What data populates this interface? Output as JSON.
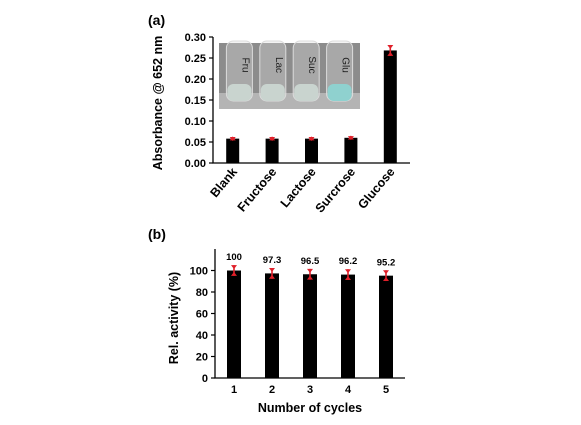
{
  "chart_data": [
    {
      "panel": "(a)",
      "type": "bar",
      "categories": [
        "Blank",
        "Fructose",
        "Lactose",
        "Surcrose",
        "Glucose"
      ],
      "values": [
        0.058,
        0.058,
        0.058,
        0.06,
        0.268
      ],
      "errors": [
        0.004,
        0.004,
        0.004,
        0.004,
        0.013
      ],
      "ylabel": "Absorbance @ 652 nm",
      "xlabel": "",
      "ylim": [
        0,
        0.3
      ],
      "yticks": [
        "0.00",
        "0.05",
        "0.10",
        "0.15",
        "0.20",
        "0.25",
        "0.30"
      ],
      "grid": false,
      "inset": {
        "description_free": true,
        "tube_labels": [
          "Fru",
          "Lac",
          "Suc",
          "Glu"
        ],
        "colors": {
          "liquid_clear": "#c9d4cf",
          "liquid_glucose": "#8fd1cf"
        }
      }
    },
    {
      "panel": "(b)",
      "type": "bar",
      "categories": [
        "1",
        "2",
        "3",
        "4",
        "5"
      ],
      "values": [
        100,
        97.3,
        96.5,
        96.2,
        95.2
      ],
      "data_labels": [
        "100",
        "97.3",
        "96.5",
        "96.2",
        "95.2"
      ],
      "errors": [
        5,
        5,
        5,
        5,
        5
      ],
      "ylabel": "Rel. activity (%)",
      "xlabel": "Number of cycles",
      "ylim": [
        0,
        120
      ],
      "yticks": [
        "0",
        "20",
        "40",
        "60",
        "80",
        "100"
      ],
      "grid": false
    }
  ],
  "colors": {
    "bar": "#000000",
    "error_bar": "#e0202a"
  }
}
